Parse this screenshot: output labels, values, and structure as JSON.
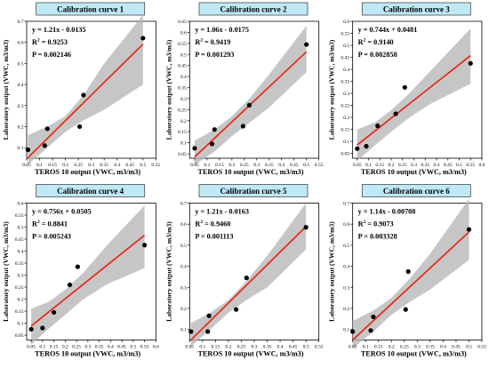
{
  "panel_width": 183.33,
  "panel_height": 204.5,
  "colors": {
    "title_bg": "#bfe9f7",
    "title_border": "#4a4a4a",
    "band": "#b3b3b3",
    "fit": "#e8210e",
    "point": "#000000",
    "axis": "#000000"
  },
  "chart_data": [
    {
      "type": "scatter",
      "title": "Calibration curve 1",
      "equation": "y = 1.21x - 0.0135",
      "r2_label": "R",
      "r2_sup": "2",
      "r2_value": " = 0.9253",
      "p_label": "P = 0.002146",
      "xlabel": "TEROS 10 output (VWC, m3/m3)",
      "ylabel": "Laboratory output (VWC, m3/m3)",
      "xlim": [
        0.05,
        0.55
      ],
      "ylim": [
        0.05,
        0.7
      ],
      "xticks": [
        0.05,
        0.1,
        0.15,
        0.2,
        0.25,
        0.3,
        0.35,
        0.4,
        0.45,
        0.5,
        0.55
      ],
      "xtick_labels": [
        "0.05",
        "0.1",
        "0.15",
        "0.2",
        "0.25",
        "0.3",
        "0.35",
        "0.4",
        "0.45",
        "0.5",
        "0.55"
      ],
      "yticks": [
        0.1,
        0.2,
        0.3,
        0.4,
        0.5,
        0.6,
        0.7
      ],
      "ytick_labels": [
        "0.1",
        "0.2",
        "0.3",
        "0.4",
        "0.5",
        "0.6",
        "0.7"
      ],
      "points": [
        [
          0.055,
          0.09
        ],
        [
          0.12,
          0.11
        ],
        [
          0.13,
          0.19
        ],
        [
          0.255,
          0.2
        ],
        [
          0.27,
          0.35
        ],
        [
          0.5,
          0.62
        ]
      ],
      "fit": {
        "slope": 1.21,
        "intercept": -0.0135,
        "x": [
          0.055,
          0.5
        ]
      },
      "band": {
        "lower": [
          0.02,
          0.1,
          0.175,
          0.23,
          0.28,
          0.4
        ],
        "upper": [
          0.16,
          0.2,
          0.25,
          0.35,
          0.5,
          0.73
        ],
        "x": [
          0.055,
          0.13,
          0.2,
          0.27,
          0.35,
          0.5
        ]
      }
    },
    {
      "type": "scatter",
      "title": "Calibration curve 2",
      "equation": "y = 1.06x - 0.0175",
      "r2_label": "R",
      "r2_sup": "2",
      "r2_value": " = 0.9419",
      "p_label": "P = 0.001293",
      "xlabel": "TEROS 10 output (VWC, m3/m3)",
      "ylabel": "Laboratory output (VWC, m3/m3)",
      "xlim": [
        0.03,
        0.55
      ],
      "ylim": [
        0.03,
        0.65
      ],
      "xticks": [
        0.05,
        0.1,
        0.15,
        0.2,
        0.25,
        0.3,
        0.35,
        0.4,
        0.45,
        0.5,
        0.55
      ],
      "xtick_labels": [
        "0.05",
        "0.1",
        "0.15",
        "0.2",
        "0.25",
        "0.3",
        "0.35",
        "0.4",
        "0.45",
        "0.5",
        "0.55"
      ],
      "yticks": [
        0.05,
        0.1,
        0.15,
        0.2,
        0.25,
        0.3,
        0.35,
        0.4,
        0.45,
        0.5,
        0.55,
        0.6,
        0.65
      ],
      "ytick_labels": [
        "0.05",
        "0.1",
        "0.15",
        "0.2",
        "0.25",
        "0.3",
        "0.35",
        "0.4",
        "0.45",
        "0.5",
        "0.55",
        "0.6",
        "0.65"
      ],
      "points": [
        [
          0.05,
          0.075
        ],
        [
          0.12,
          0.095
        ],
        [
          0.13,
          0.16
        ],
        [
          0.245,
          0.175
        ],
        [
          0.27,
          0.27
        ],
        [
          0.5,
          0.545
        ]
      ],
      "fit": {
        "slope": 1.06,
        "intercept": -0.0175,
        "x": [
          0.05,
          0.5
        ]
      },
      "band": {
        "lower": [
          0.0,
          0.06,
          0.13,
          0.19,
          0.26,
          0.42
        ],
        "upper": [
          0.11,
          0.16,
          0.22,
          0.3,
          0.41,
          0.63
        ],
        "x": [
          0.05,
          0.13,
          0.2,
          0.27,
          0.35,
          0.5
        ]
      }
    },
    {
      "type": "scatter",
      "title": "Calibration curve 3",
      "equation": "y = 0.744x + 0.0481",
      "r2_label": "R",
      "r2_sup": "2",
      "r2_value": " = 0.9140",
      "p_label": "P = 0.002858",
      "xlabel": "TEROS 10 output (VWC, m3/m3)",
      "ylabel": "Laboratory output (VWC, m3/m3)",
      "xlim": [
        0.03,
        0.6
      ],
      "ylim": [
        0.03,
        0.6
      ],
      "xticks": [
        0.05,
        0.1,
        0.15,
        0.2,
        0.25,
        0.3,
        0.35,
        0.4,
        0.45,
        0.5,
        0.55,
        0.6
      ],
      "xtick_labels": [
        "0.05",
        "0.1",
        "0.15",
        "0.2",
        "0.25",
        "0.3",
        "0.35",
        "0.4",
        "0.45",
        "0.5",
        "0.55",
        "0.6"
      ],
      "yticks": [
        0.05,
        0.1,
        0.15,
        0.2,
        0.25,
        0.3,
        0.35,
        0.4,
        0.45,
        0.5,
        0.55,
        0.6
      ],
      "ytick_labels": [
        "0.05",
        "0.1",
        "0.15",
        "0.2",
        "0.25",
        "0.3",
        "0.35",
        "0.4",
        "0.45",
        "0.5",
        "0.55",
        "0.6"
      ],
      "points": [
        [
          0.05,
          0.07
        ],
        [
          0.09,
          0.08
        ],
        [
          0.14,
          0.165
        ],
        [
          0.22,
          0.215
        ],
        [
          0.26,
          0.325
        ],
        [
          0.55,
          0.425
        ]
      ],
      "fit": {
        "slope": 0.744,
        "intercept": 0.0481,
        "x": [
          0.05,
          0.55
        ]
      },
      "band": {
        "lower": [
          0.02,
          0.085,
          0.14,
          0.2,
          0.26,
          0.34
        ],
        "upper": [
          0.15,
          0.18,
          0.23,
          0.3,
          0.4,
          0.57
        ],
        "x": [
          0.05,
          0.13,
          0.2,
          0.28,
          0.38,
          0.55
        ]
      }
    },
    {
      "type": "scatter",
      "title": "Calibration curve 4",
      "equation": "y = 0.756x + 0.0505",
      "r2_label": "R",
      "r2_sup": "2",
      "r2_value": " = 0.8841",
      "p_label": "P = 0.005243",
      "xlabel": "TEROS 10 output (VWC, m3/m3)",
      "ylabel": "Laboratory output (VWC, m3/m3)",
      "xlim": [
        0.03,
        0.6
      ],
      "ylim": [
        0.03,
        0.6
      ],
      "xticks": [
        0.05,
        0.1,
        0.15,
        0.2,
        0.25,
        0.3,
        0.35,
        0.4,
        0.45,
        0.5,
        0.55,
        0.6
      ],
      "xtick_labels": [
        "0.05",
        "0.1",
        "0.15",
        "0.2",
        "0.25",
        "0.3",
        "0.35",
        "0.4",
        "0.45",
        "0.5",
        "0.55",
        "0.6"
      ],
      "yticks": [
        0.05,
        0.1,
        0.15,
        0.2,
        0.25,
        0.3,
        0.35,
        0.4,
        0.45,
        0.5,
        0.55,
        0.6
      ],
      "ytick_labels": [
        "0.05",
        "0.1",
        "0.15",
        "0.2",
        "0.25",
        "0.3",
        "0.35",
        "0.4",
        "0.45",
        "0.5",
        "0.55",
        "0.6"
      ],
      "points": [
        [
          0.05,
          0.075
        ],
        [
          0.1,
          0.08
        ],
        [
          0.15,
          0.145
        ],
        [
          0.22,
          0.26
        ],
        [
          0.255,
          0.335
        ],
        [
          0.55,
          0.425
        ]
      ],
      "fit": {
        "slope": 0.756,
        "intercept": 0.0505,
        "x": [
          0.05,
          0.55
        ]
      },
      "band": {
        "lower": [
          0.01,
          0.08,
          0.135,
          0.2,
          0.26,
          0.33
        ],
        "upper": [
          0.16,
          0.19,
          0.24,
          0.31,
          0.42,
          0.59
        ],
        "x": [
          0.05,
          0.13,
          0.2,
          0.28,
          0.38,
          0.55
        ]
      }
    },
    {
      "type": "scatter",
      "title": "Calibration curve 5",
      "equation": "y = 1.21x - 0.0163",
      "r2_label": "R",
      "r2_sup": "2",
      "r2_value": " = 0.9460",
      "p_label": "P = 0.001113",
      "xlabel": "TEROS 10 output (VWC, m3/m3)",
      "ylabel": "Laboratory output (VWC, m3/m3)",
      "xlim": [
        0.05,
        0.55
      ],
      "ylim": [
        0.05,
        0.7
      ],
      "xticks": [
        0.05,
        0.1,
        0.15,
        0.2,
        0.25,
        0.3,
        0.35,
        0.4,
        0.45,
        0.5,
        0.55
      ],
      "xtick_labels": [
        "0.05",
        "0.1",
        "0.15",
        "0.2",
        "0.25",
        "0.3",
        "0.35",
        "0.4",
        "0.45",
        "0.5",
        "0.55"
      ],
      "yticks": [
        0.1,
        0.2,
        0.3,
        0.4,
        0.5,
        0.6,
        0.7
      ],
      "ytick_labels": [
        "0.1",
        "0.2",
        "0.3",
        "0.4",
        "0.5",
        "0.6",
        "0.7"
      ],
      "points": [
        [
          0.055,
          0.09
        ],
        [
          0.12,
          0.09
        ],
        [
          0.125,
          0.165
        ],
        [
          0.23,
          0.195
        ],
        [
          0.27,
          0.345
        ],
        [
          0.5,
          0.585
        ]
      ],
      "fit": {
        "slope": 1.21,
        "intercept": -0.0163,
        "x": [
          0.055,
          0.5
        ]
      },
      "band": {
        "lower": [
          0.02,
          0.1,
          0.18,
          0.24,
          0.3,
          0.48
        ],
        "upper": [
          0.13,
          0.18,
          0.24,
          0.33,
          0.45,
          0.7
        ],
        "x": [
          0.055,
          0.13,
          0.2,
          0.27,
          0.35,
          0.5
        ]
      }
    },
    {
      "type": "scatter",
      "title": "Calibration curve 6",
      "equation": "y = 1.14x - 0.00708",
      "r2_label": "R",
      "r2_sup": "2",
      "r2_value": " = 0.9073",
      "p_label": "P = 0.003328",
      "xlabel": "TEROS 10 output (VWC, m3/m3)",
      "ylabel": "Laboratory output (VWC, m3/m3)",
      "xlim": [
        0.05,
        0.55
      ],
      "ylim": [
        0.05,
        0.7
      ],
      "xticks": [
        0.05,
        0.1,
        0.15,
        0.2,
        0.25,
        0.3,
        0.35,
        0.4,
        0.45,
        0.5,
        0.55
      ],
      "xtick_labels": [
        "0.05",
        "0.1",
        "0.15",
        "0.2",
        "0.25",
        "0.3",
        "0.35",
        "0.4",
        "0.45",
        "0.5",
        "0.55"
      ],
      "yticks": [
        0.1,
        0.2,
        0.3,
        0.4,
        0.5,
        0.6,
        0.7
      ],
      "ytick_labels": [
        "0.1",
        "0.2",
        "0.3",
        "0.4",
        "0.5",
        "0.6",
        "0.7"
      ],
      "points": [
        [
          0.05,
          0.09
        ],
        [
          0.12,
          0.095
        ],
        [
          0.13,
          0.16
        ],
        [
          0.255,
          0.195
        ],
        [
          0.265,
          0.375
        ],
        [
          0.5,
          0.575
        ]
      ],
      "fit": {
        "slope": 1.14,
        "intercept": -0.00708,
        "x": [
          0.05,
          0.5
        ]
      },
      "band": {
        "lower": [
          0.01,
          0.09,
          0.17,
          0.23,
          0.29,
          0.43
        ],
        "upper": [
          0.14,
          0.19,
          0.25,
          0.34,
          0.46,
          0.72
        ],
        "x": [
          0.05,
          0.13,
          0.2,
          0.27,
          0.35,
          0.5
        ]
      }
    }
  ]
}
